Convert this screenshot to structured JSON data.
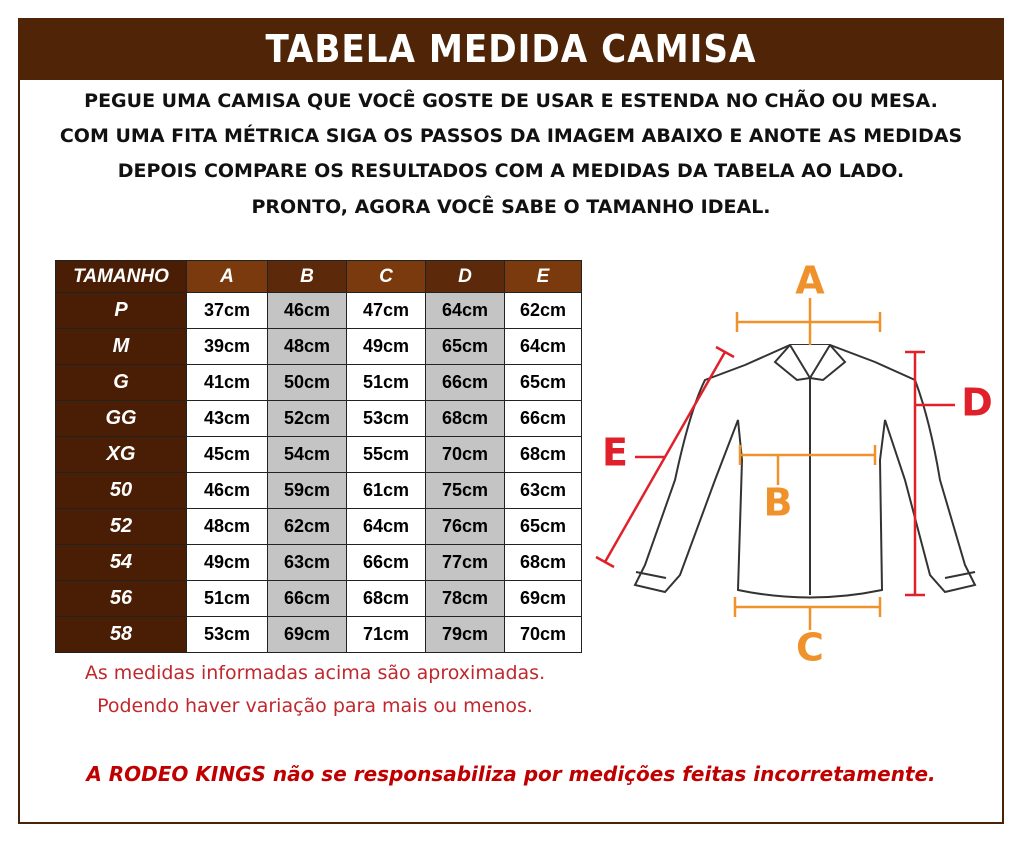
{
  "header": {
    "title": "TABELA MEDIDA CAMISA"
  },
  "instructions": [
    "PEGUE UMA CAMISA QUE VOCÊ GOSTE DE USAR E ESTENDA NO CHÃO OU MESA.",
    "COM UMA FITA MÉTRICA SIGA OS PASSOS DA IMAGEM ABAIXO E ANOTE AS MEDIDAS",
    "DEPOIS COMPARE OS RESULTADOS COM A MEDIDAS DA TABELA AO LADO.",
    "PRONTO, AGORA VOCÊ SABE O TAMANHO IDEAL."
  ],
  "table": {
    "columns": [
      "TAMANHO",
      "A",
      "B",
      "C",
      "D",
      "E"
    ],
    "rows": [
      [
        "P",
        "37cm",
        "46cm",
        "47cm",
        "64cm",
        "62cm"
      ],
      [
        "M",
        "39cm",
        "48cm",
        "49cm",
        "65cm",
        "64cm"
      ],
      [
        "G",
        "41cm",
        "50cm",
        "51cm",
        "66cm",
        "65cm"
      ],
      [
        "GG",
        "43cm",
        "52cm",
        "53cm",
        "68cm",
        "66cm"
      ],
      [
        "XG",
        "45cm",
        "54cm",
        "55cm",
        "70cm",
        "68cm"
      ],
      [
        "50",
        "46cm",
        "59cm",
        "61cm",
        "75cm",
        "63cm"
      ],
      [
        "52",
        "48cm",
        "62cm",
        "64cm",
        "76cm",
        "65cm"
      ],
      [
        "54",
        "49cm",
        "63cm",
        "66cm",
        "77cm",
        "68cm"
      ],
      [
        "56",
        "51cm",
        "66cm",
        "68cm",
        "78cm",
        "69cm"
      ],
      [
        "58",
        "53cm",
        "69cm",
        "71cm",
        "79cm",
        "70cm"
      ]
    ]
  },
  "notes": [
    "As medidas informadas acima são aproximadas.",
    "Podendo haver variação para mais ou menos."
  ],
  "disclaimer": "A RODEO KINGS não se responsabiliza por medições feitas incorretamente.",
  "diagram": {
    "labels": [
      "A",
      "B",
      "C",
      "D",
      "E"
    ]
  }
}
